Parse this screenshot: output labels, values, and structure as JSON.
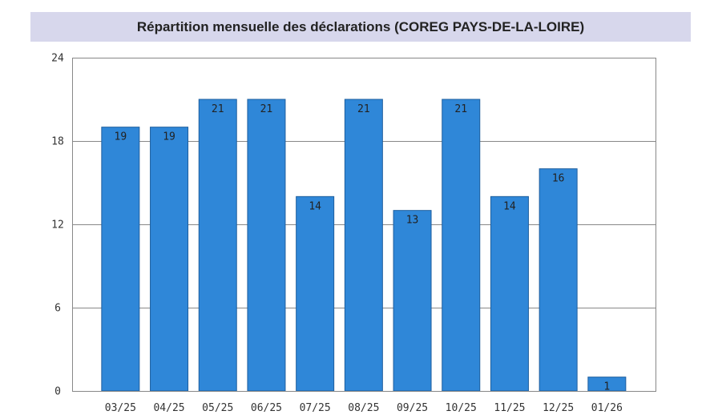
{
  "chart_data": {
    "type": "bar",
    "title": "Répartition mensuelle des déclarations (COREG PAYS-DE-LA-LOIRE)",
    "xlabel": "",
    "ylabel": "",
    "categories": [
      "03/25",
      "04/25",
      "05/25",
      "06/25",
      "07/25",
      "08/25",
      "09/25",
      "10/25",
      "11/25",
      "12/25",
      "01/26"
    ],
    "values": [
      19,
      19,
      21,
      21,
      14,
      21,
      13,
      21,
      14,
      16,
      1
    ],
    "ylim": [
      0,
      24
    ],
    "yticks": [
      0,
      6,
      12,
      18,
      24
    ],
    "grid": true,
    "legend": "none",
    "data_labels": true,
    "colors": {
      "bar": "#2f87d8",
      "bar_edge": "#1e5f9e",
      "grid": "#888888",
      "title_background": "#d7d7ec"
    }
  }
}
